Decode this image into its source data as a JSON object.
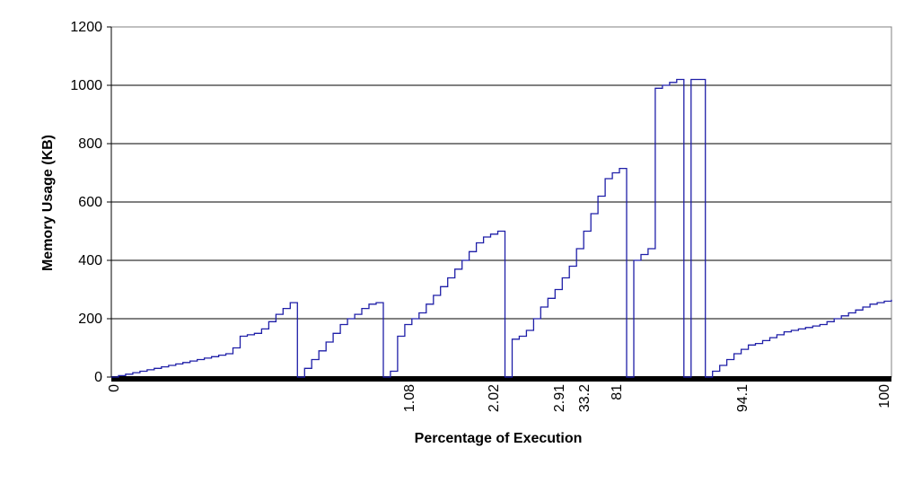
{
  "chart_data": {
    "type": "line",
    "title": "",
    "xlabel": "Percentage of Execution",
    "ylabel": "Memory Usage (KB)",
    "ylim": [
      0,
      1200
    ],
    "yticks": [
      "0",
      "200",
      "400",
      "600",
      "800",
      "1000",
      "1200"
    ],
    "xtick_labels": [
      "0",
      "1.08",
      "2.02",
      "2.91",
      "33.2",
      "81",
      "94.1",
      "100"
    ],
    "grid": "horizontal",
    "legend": "none",
    "line_color": "#1f1fa8",
    "series": [
      {
        "values": [
          0,
          5,
          10,
          15,
          20,
          25,
          30,
          35,
          40,
          45,
          50,
          55,
          60,
          65,
          70,
          75,
          80,
          100,
          140,
          145,
          150,
          165,
          190,
          215,
          235,
          255,
          0,
          30,
          60,
          90,
          120,
          150,
          180,
          200,
          215,
          235,
          250,
          255,
          0,
          20,
          140,
          180,
          200,
          220,
          250,
          280,
          310,
          340,
          370,
          400,
          430,
          460,
          480,
          490,
          500,
          0,
          130,
          140,
          160,
          200,
          240,
          270,
          300,
          340,
          380,
          440,
          500,
          560,
          620,
          680,
          700,
          715,
          0,
          400,
          420,
          440,
          990,
          1000,
          1010,
          1020,
          0,
          1020,
          1020,
          0,
          20,
          40,
          60,
          80,
          95,
          110,
          115,
          125,
          135,
          145,
          155,
          160,
          165,
          170,
          175,
          180,
          190,
          200,
          210,
          220,
          230,
          240,
          250,
          255,
          260,
          265
        ]
      }
    ]
  }
}
